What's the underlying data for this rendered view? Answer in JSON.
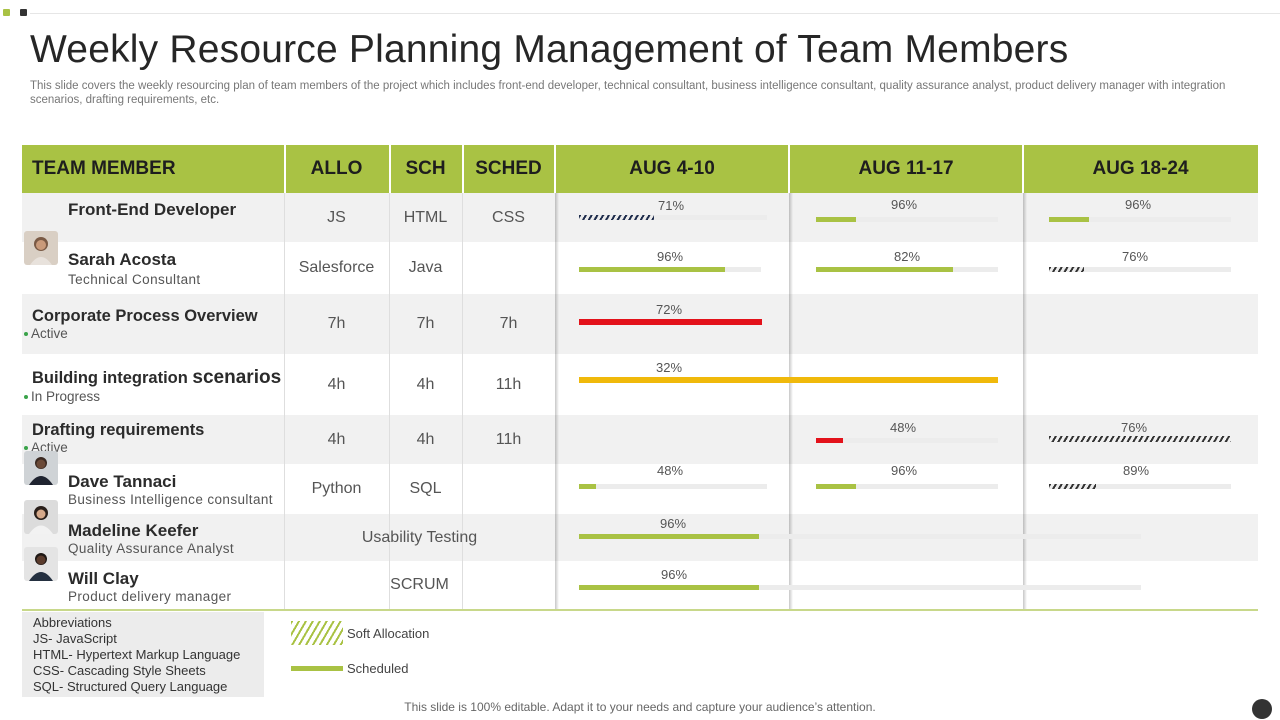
{
  "colors": {
    "accent": "#a9c244",
    "dark": "#333333",
    "red": "#e3121b",
    "yellow": "#f0b90b"
  },
  "title": "Weekly Resource Planning Management of Team Members",
  "subtitle": "This slide covers the weekly resourcing plan of team members of the project which includes front-end developer, technical consultant, business intelligence consultant, quality assurance analyst, product delivery manager with integration scenarios, drafting requirements, etc.",
  "headers": {
    "member": "TEAM MEMBER",
    "allo": "ALLO",
    "sch": "SCH",
    "sched": "SCHED",
    "w1": "AUG 4-10",
    "w2": "AUG 11-17",
    "w3": "AUG 18-24"
  },
  "rows": [
    {
      "name": "Front-End Developer",
      "role": "",
      "allo": "JS",
      "sch": "HTML",
      "sched": "CSS",
      "bars": [
        {
          "pct": "71%",
          "value": 0.71,
          "style": "hatch-navy"
        },
        {
          "pct": "96%",
          "value": 0.22,
          "style": "green"
        },
        {
          "pct": "96%",
          "value": 0.22,
          "style": "green"
        }
      ]
    },
    {
      "name": "Sarah Acosta",
      "role": "Technical Consultant",
      "allo": "Salesforce",
      "sch": "Java",
      "sched": "",
      "bars": [
        {
          "pct": "96%",
          "value": 0.8,
          "style": "green"
        },
        {
          "pct": "82%",
          "value": 0.75,
          "style": "green"
        },
        {
          "pct": "76%",
          "value": 0.19,
          "style": "hatch"
        }
      ]
    },
    {
      "name": "Corporate Process Overview",
      "status": "Active",
      "allo": "7h",
      "sch": "7h",
      "sched": "7h",
      "bars": [
        {
          "pct": "72%",
          "value": 0.72,
          "style": "red"
        }
      ]
    },
    {
      "name": "Building integration",
      "name_big": "scenarios",
      "status": "In Progress",
      "allo": "4h",
      "sch": "4h",
      "sched": "11h",
      "bars": [
        {
          "pct": "32%",
          "value": 0.32,
          "style": "yellow"
        }
      ]
    },
    {
      "name": "Drafting requirements",
      "status": "Active",
      "allo": "4h",
      "sch": "4h",
      "sched": "11h",
      "bars": [
        {
          "pct": "48%",
          "value": 0.15,
          "style": "red"
        },
        {
          "pct": "76%",
          "value": 1.0,
          "style": "hatch"
        }
      ]
    },
    {
      "name": "Dave Tannaci",
      "role": "Business Intelligence consultant",
      "allo": "Python",
      "sch": "SQL",
      "sched": "",
      "bars": [
        {
          "pct": "48%",
          "value": 0.09,
          "style": "green"
        },
        {
          "pct": "96%",
          "value": 0.22,
          "style": "green"
        },
        {
          "pct": "89%",
          "value": 0.26,
          "style": "hatch"
        }
      ]
    },
    {
      "name": "Madeline Keefer",
      "role": "Quality Assurance  Analyst",
      "span": "Usability Testing",
      "bars": [
        {
          "pct": "96%",
          "value": 0.32,
          "style": "green"
        }
      ]
    },
    {
      "name": "Will Clay",
      "role": "Product delivery manager",
      "span": "SCRUM",
      "bars": [
        {
          "pct": "96%",
          "value": 0.32,
          "style": "green"
        }
      ]
    }
  ],
  "abbreviations": [
    "Abbreviations",
    "JS- JavaScript",
    "HTML-  Hypertext  Markup Language",
    "CSS- Cascading  Style Sheets",
    "SQL- Structured Query  Language"
  ],
  "legend": {
    "soft": "Soft Allocation",
    "scheduled": "Scheduled"
  },
  "footer": "This slide is 100% editable. Adapt it to your needs and capture your audience’s attention."
}
